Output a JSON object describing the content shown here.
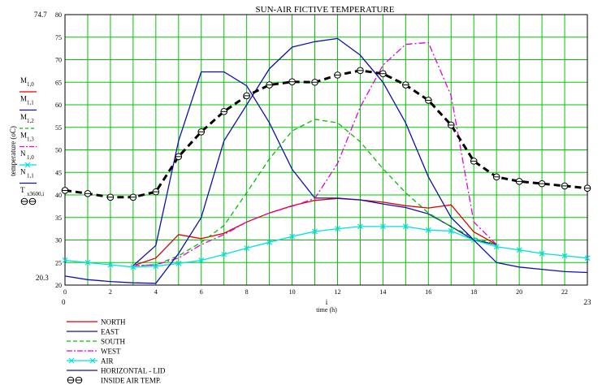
{
  "chart_data": {
    "type": "line",
    "title": "SUN-AIR FICTIVE TEMPERATURE",
    "xlabel": "time (h)",
    "ylabel": "temperature (oC)",
    "x_var_label": "i",
    "xlim": [
      0,
      23
    ],
    "ylim": [
      20,
      80
    ],
    "x_range_labels": [
      "0",
      "23"
    ],
    "y_range_labels": [
      "74.7",
      "20.3"
    ],
    "x_ticks": [
      "0",
      "2",
      "4",
      "6",
      "8",
      "10",
      "12",
      "14",
      "16",
      "18",
      "20",
      "22"
    ],
    "y_ticks": [
      "20",
      "25",
      "30",
      "35",
      "40",
      "45",
      "50",
      "55",
      "60",
      "65",
      "70",
      "75",
      "80"
    ],
    "grid": true,
    "legend_placement": "bottom-left",
    "series": [
      {
        "name": "NORTH",
        "expr": "M",
        "sub": "1,0",
        "color": "#e00000",
        "style": "solid",
        "marker": "none",
        "x": [
          3,
          4,
          5,
          6,
          7,
          8,
          9,
          10,
          11,
          12,
          13,
          14,
          15,
          16,
          17,
          18,
          19
        ],
        "values": [
          24.3,
          26,
          31.2,
          30.3,
          31.5,
          34,
          36,
          37.6,
          38.8,
          39.2,
          38.9,
          38.4,
          37.6,
          37.1,
          37.8,
          31.8,
          29
        ]
      },
      {
        "name": "EAST",
        "expr": "M",
        "sub": "1,1",
        "color": "#1010b0",
        "style": "solid",
        "marker": "none",
        "x": [
          3,
          4,
          5,
          6,
          7,
          8,
          9,
          10,
          11,
          12,
          13,
          14,
          15,
          16,
          17,
          18,
          19
        ],
        "values": [
          24.3,
          28.8,
          52,
          67.3,
          67.3,
          64.2,
          56,
          45.7,
          39.3,
          39.3,
          38.9,
          38,
          37.2,
          35.8,
          33,
          30,
          29
        ]
      },
      {
        "name": "SOUTH",
        "expr": "M",
        "sub": "1,2",
        "color": "#00c000",
        "style": "dashed",
        "marker": "none",
        "x": [
          3,
          4,
          5,
          6,
          7,
          8,
          9,
          10,
          11,
          12,
          13,
          14,
          15,
          16,
          17,
          18,
          19
        ],
        "values": [
          24.3,
          24.5,
          26.5,
          29.5,
          33.2,
          40.5,
          48,
          54.2,
          56.8,
          56,
          51.8,
          45.8,
          40.5,
          36,
          33,
          30.5,
          29
        ]
      },
      {
        "name": "WEST",
        "expr": "M",
        "sub": "1,3",
        "color": "#e000e0",
        "style": "dashdot",
        "marker": "none",
        "x": [
          3,
          4,
          5,
          6,
          7,
          8,
          9,
          10,
          11,
          12,
          13,
          14,
          15,
          16,
          17,
          18,
          19
        ],
        "values": [
          24.3,
          24.5,
          26,
          29,
          31.2,
          34,
          36,
          37.5,
          39.2,
          47,
          59.5,
          68.8,
          73.4,
          73.8,
          62,
          34,
          29
        ]
      },
      {
        "name": "AIR",
        "expr": "N",
        "sub": "1,0",
        "color": "#00e0e0",
        "style": "solid",
        "marker": "x",
        "x": [
          0,
          1,
          2,
          3,
          4,
          5,
          6,
          7,
          8,
          9,
          10,
          11,
          12,
          13,
          14,
          15,
          16,
          17,
          18,
          19,
          20,
          21,
          22,
          23
        ],
        "values": [
          25.5,
          25,
          24.5,
          24,
          24.2,
          24.8,
          25.5,
          26.8,
          28.2,
          29.5,
          30.8,
          31.9,
          32.5,
          33,
          33,
          33,
          32.2,
          32,
          30,
          28.5,
          27.8,
          27,
          26.5,
          26
        ]
      },
      {
        "name": "HORIZONTAL - LID",
        "expr": "N",
        "sub": "1,1",
        "color": "#1010b0",
        "style": "solid",
        "marker": "none",
        "x": [
          0,
          1,
          2,
          3,
          4,
          5,
          6,
          7,
          8,
          9,
          10,
          11,
          12,
          13,
          14,
          15,
          16,
          17,
          18,
          19,
          20,
          21,
          22,
          23
        ],
        "values": [
          22,
          21.2,
          20.8,
          20.5,
          20.4,
          27,
          35,
          52,
          60,
          68,
          72.8,
          74,
          74.7,
          71,
          65,
          56,
          44,
          35,
          30,
          25,
          24,
          23.5,
          23,
          22.8
        ]
      },
      {
        "name": "INSIDE AIR TEMP.",
        "expr": "T",
        "sub": "x3600,i",
        "color": "#000000",
        "style": "bold-dashed",
        "marker": "circle",
        "x": [
          0,
          1,
          2,
          3,
          4,
          5,
          6,
          7,
          8,
          9,
          10,
          11,
          12,
          13,
          14,
          15,
          16,
          17,
          18,
          19,
          20,
          21,
          22,
          23
        ],
        "values": [
          41,
          40.3,
          39.5,
          39.5,
          40.7,
          48.5,
          54,
          58.5,
          62,
          64.4,
          65.1,
          65,
          66.6,
          67.6,
          66.9,
          64.4,
          61,
          55.5,
          47.5,
          44,
          43,
          42.5,
          42,
          41.5
        ]
      }
    ]
  }
}
